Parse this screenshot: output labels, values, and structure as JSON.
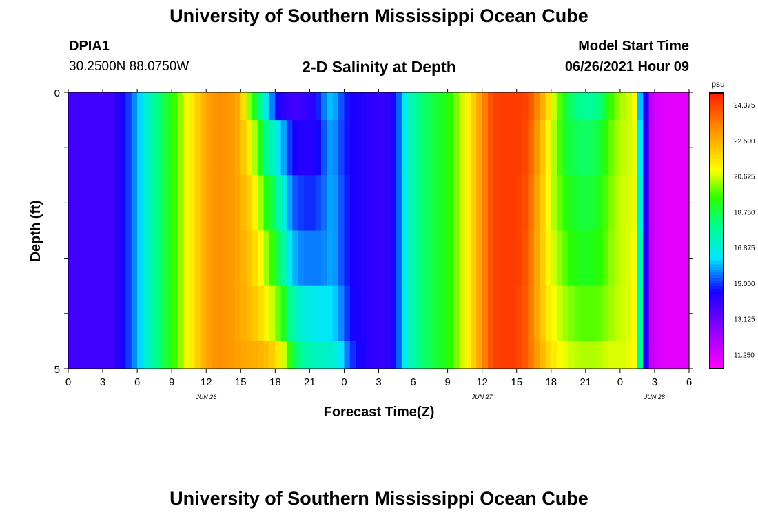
{
  "header": {
    "title": "University of Southern Mississippi Ocean Cube",
    "station": "DPIA1",
    "coords": "30.2500N  88.0750W",
    "subtitle": "2-D Salinity at Depth",
    "model_label": "Model Start Time",
    "model_time": "06/26/2021 Hour 09"
  },
  "footer": {
    "title": "University of Southern Mississippi Ocean Cube"
  },
  "chart_data": {
    "type": "heatmap",
    "title": "2-D Salinity at Depth",
    "xlabel": "Forecast Time(Z)",
    "ylabel": "Depth (ft)",
    "x_tick_labels": [
      "0",
      "3",
      "6",
      "9",
      "12",
      "15",
      "18",
      "21",
      "0",
      "3",
      "6",
      "9",
      "12",
      "15",
      "18",
      "21",
      "0",
      "3",
      "6"
    ],
    "x_hour_offsets": [
      0,
      3,
      6,
      9,
      12,
      15,
      18,
      21,
      24,
      27,
      30,
      33,
      36,
      39,
      42,
      45,
      48,
      51,
      54
    ],
    "date_labels": [
      {
        "text": "JUN 26",
        "hour": 12
      },
      {
        "text": "JUN 27",
        "hour": 36
      },
      {
        "text": "JUN 28",
        "hour": 51
      }
    ],
    "xlim_hours": [
      0,
      54
    ],
    "y_tick_labels": [
      "0",
      "5"
    ],
    "ylim": [
      0,
      5
    ],
    "depths": [
      0,
      1,
      2,
      3,
      4,
      5
    ],
    "colorbar": {
      "unit": "psu",
      "range": [
        10.5,
        25.0
      ],
      "tick_labels": [
        "24.375",
        "22.500",
        "20.625",
        "18.750",
        "16.875",
        "15.000",
        "13.125",
        "11.250"
      ],
      "tick_values": [
        24.375,
        22.5,
        20.625,
        18.75,
        16.875,
        15.0,
        13.125,
        11.25
      ]
    },
    "hour_step": 0.5,
    "salinity_rows": [
      [
        13.8,
        13.8,
        13.8,
        13.8,
        13.8,
        13.8,
        13.8,
        13.8,
        14.1,
        14.5,
        15.0,
        15.6,
        16.2,
        16.9,
        17.5,
        18.0,
        18.6,
        19.1,
        19.6,
        20.2,
        20.8,
        21.3,
        21.9,
        22.4,
        22.8,
        23.0,
        23.1,
        23.0,
        22.9,
        22.6,
        21.6,
        20.2,
        19.2,
        18.0,
        16.6,
        15.5,
        14.6,
        14.1,
        13.9,
        13.8,
        13.9,
        14.0,
        14.2,
        14.8,
        15.5,
        16.0,
        15.8,
        15.2,
        14.7,
        14.5,
        14.4,
        14.3,
        14.2,
        14.1,
        14.0,
        14.1,
        14.4,
        15.3,
        16.5,
        17.3,
        17.8,
        18.2,
        18.5,
        18.8,
        19.0,
        19.2,
        19.5,
        20.0,
        20.6,
        21.2,
        21.9,
        22.6,
        23.4,
        24.1,
        24.4,
        24.5,
        24.5,
        24.5,
        24.5,
        24.4,
        24.0,
        23.3,
        22.5,
        21.6,
        20.6,
        19.8,
        19.1,
        18.5,
        18.1,
        18.0,
        17.8,
        17.9,
        18.3,
        18.9,
        19.6,
        20.1,
        20.4,
        20.6,
        21.0,
        16.0,
        14.5,
        11.6,
        11.2,
        11.1,
        11.0,
        11.0,
        11.0,
        11.0,
        11.0
      ],
      [
        13.8,
        13.8,
        13.8,
        13.8,
        13.8,
        13.8,
        13.8,
        13.8,
        14.1,
        14.5,
        15.0,
        15.6,
        16.2,
        16.9,
        17.5,
        18.0,
        18.6,
        19.1,
        19.6,
        20.2,
        20.8,
        21.3,
        21.9,
        22.4,
        22.8,
        23.0,
        23.1,
        23.0,
        22.9,
        22.6,
        22.0,
        21.3,
        20.4,
        19.2,
        18.1,
        17.3,
        16.6,
        15.8,
        15.0,
        14.5,
        14.3,
        14.3,
        14.3,
        14.6,
        15.2,
        15.7,
        15.6,
        15.1,
        14.7,
        14.5,
        14.4,
        14.3,
        14.2,
        14.1,
        14.0,
        14.1,
        14.4,
        15.3,
        16.5,
        17.3,
        17.8,
        18.2,
        18.5,
        18.8,
        19.0,
        19.2,
        19.5,
        20.0,
        20.6,
        21.2,
        21.9,
        22.6,
        23.4,
        24.1,
        24.4,
        24.5,
        24.5,
        24.5,
        24.5,
        24.3,
        23.8,
        23.0,
        22.1,
        21.1,
        20.4,
        19.7,
        19.1,
        18.8,
        18.6,
        18.5,
        18.5,
        18.6,
        19.0,
        19.4,
        19.9,
        20.3,
        20.5,
        20.6,
        20.8,
        16.5,
        14.5,
        11.6,
        11.2,
        11.1,
        11.0,
        11.0,
        11.0,
        11.0,
        11.0
      ],
      [
        13.8,
        13.8,
        13.8,
        13.8,
        13.8,
        13.8,
        13.8,
        13.8,
        14.1,
        14.5,
        15.0,
        15.6,
        16.2,
        16.9,
        17.5,
        18.0,
        18.6,
        19.1,
        19.6,
        20.2,
        20.8,
        21.3,
        21.9,
        22.4,
        22.8,
        23.0,
        23.1,
        23.0,
        22.9,
        22.7,
        22.3,
        21.9,
        21.2,
        20.3,
        19.4,
        18.7,
        17.8,
        16.8,
        15.8,
        15.2,
        15.0,
        14.9,
        14.9,
        15.1,
        15.4,
        15.8,
        15.7,
        15.2,
        14.8,
        14.5,
        14.4,
        14.3,
        14.2,
        14.1,
        14.0,
        14.1,
        14.4,
        15.3,
        16.5,
        17.3,
        17.8,
        18.2,
        18.5,
        18.8,
        19.0,
        19.2,
        19.5,
        20.0,
        20.6,
        21.2,
        21.9,
        22.6,
        23.4,
        24.1,
        24.4,
        24.5,
        24.5,
        24.5,
        24.4,
        24.2,
        23.6,
        22.8,
        21.9,
        21.0,
        20.4,
        19.9,
        19.5,
        19.2,
        19.0,
        18.9,
        18.9,
        19.0,
        19.3,
        19.7,
        20.1,
        20.4,
        20.6,
        20.7,
        20.8,
        17.0,
        14.5,
        11.6,
        11.2,
        11.1,
        11.0,
        11.0,
        11.0,
        11.0,
        11.0
      ],
      [
        13.8,
        13.8,
        13.8,
        13.8,
        13.8,
        13.8,
        13.8,
        13.8,
        14.1,
        14.5,
        15.0,
        15.6,
        16.2,
        16.9,
        17.5,
        18.0,
        18.6,
        19.1,
        19.6,
        20.2,
        20.8,
        21.3,
        21.9,
        22.4,
        22.8,
        23.0,
        23.1,
        23.0,
        22.9,
        22.7,
        22.4,
        22.1,
        21.6,
        21.0,
        20.3,
        19.6,
        18.7,
        17.6,
        16.6,
        15.9,
        15.6,
        15.5,
        15.5,
        15.5,
        15.6,
        15.8,
        15.7,
        15.2,
        14.8,
        14.5,
        14.4,
        14.3,
        14.2,
        14.1,
        14.0,
        14.1,
        14.4,
        15.3,
        16.5,
        17.3,
        17.8,
        18.2,
        18.5,
        18.8,
        19.0,
        19.2,
        19.5,
        20.0,
        20.6,
        21.2,
        21.9,
        22.6,
        23.4,
        24.1,
        24.4,
        24.5,
        24.5,
        24.5,
        24.4,
        24.1,
        23.5,
        22.7,
        21.9,
        21.1,
        20.6,
        20.2,
        19.8,
        19.5,
        19.3,
        19.2,
        19.2,
        19.3,
        19.5,
        19.8,
        20.2,
        20.4,
        20.6,
        20.7,
        20.9,
        17.5,
        14.5,
        11.6,
        11.2,
        11.1,
        11.0,
        11.0,
        11.0,
        11.0,
        11.0
      ],
      [
        13.8,
        13.8,
        13.8,
        13.8,
        13.8,
        13.8,
        13.8,
        13.8,
        14.1,
        14.5,
        15.0,
        15.6,
        16.2,
        16.9,
        17.5,
        18.0,
        18.6,
        19.1,
        19.6,
        20.2,
        20.8,
        21.3,
        21.9,
        22.4,
        22.8,
        23.0,
        23.1,
        23.0,
        22.9,
        22.7,
        22.5,
        22.3,
        22.0,
        21.6,
        21.1,
        20.6,
        20.0,
        19.1,
        18.1,
        17.4,
        17.0,
        16.8,
        16.6,
        16.5,
        16.4,
        16.3,
        16.1,
        15.6,
        15.0,
        14.6,
        14.4,
        14.3,
        14.2,
        14.1,
        14.0,
        14.1,
        14.4,
        15.3,
        16.5,
        17.3,
        17.8,
        18.2,
        18.5,
        18.8,
        19.0,
        19.2,
        19.5,
        20.0,
        20.6,
        21.2,
        21.9,
        22.6,
        23.4,
        24.1,
        24.4,
        24.5,
        24.5,
        24.5,
        24.3,
        24.0,
        23.4,
        22.7,
        22.0,
        21.3,
        20.9,
        20.6,
        20.3,
        20.1,
        19.9,
        19.8,
        19.8,
        19.8,
        19.9,
        20.1,
        20.3,
        20.5,
        20.6,
        20.7,
        21.0,
        17.8,
        14.5,
        11.6,
        11.2,
        11.1,
        11.0,
        11.0,
        11.0,
        11.0,
        11.0
      ],
      [
        13.8,
        13.8,
        13.8,
        13.8,
        13.8,
        13.8,
        13.8,
        13.8,
        14.1,
        14.5,
        15.0,
        15.6,
        16.2,
        16.9,
        17.5,
        18.0,
        18.6,
        19.1,
        19.6,
        20.2,
        20.8,
        21.3,
        21.9,
        22.4,
        22.8,
        23.0,
        23.1,
        23.0,
        22.9,
        22.8,
        22.7,
        22.6,
        22.5,
        22.4,
        22.2,
        21.9,
        21.4,
        20.6,
        19.6,
        18.7,
        18.0,
        17.6,
        17.4,
        17.3,
        17.2,
        17.1,
        16.9,
        16.3,
        15.5,
        14.9,
        14.6,
        14.4,
        14.2,
        14.1,
        14.0,
        14.1,
        14.4,
        15.3,
        16.5,
        17.3,
        17.8,
        18.2,
        18.5,
        18.8,
        19.0,
        19.2,
        19.5,
        20.0,
        20.6,
        21.2,
        21.9,
        22.6,
        23.4,
        24.1,
        24.4,
        24.5,
        24.5,
        24.5,
        24.3,
        24.0,
        23.5,
        22.9,
        22.3,
        21.7,
        21.3,
        21.0,
        20.8,
        20.6,
        20.5,
        20.4,
        20.4,
        20.4,
        20.5,
        20.6,
        20.7,
        20.7,
        20.7,
        20.8,
        21.0,
        18.0,
        14.5,
        11.6,
        11.2,
        11.1,
        11.0,
        11.0,
        11.0,
        11.0,
        11.0
      ]
    ]
  }
}
